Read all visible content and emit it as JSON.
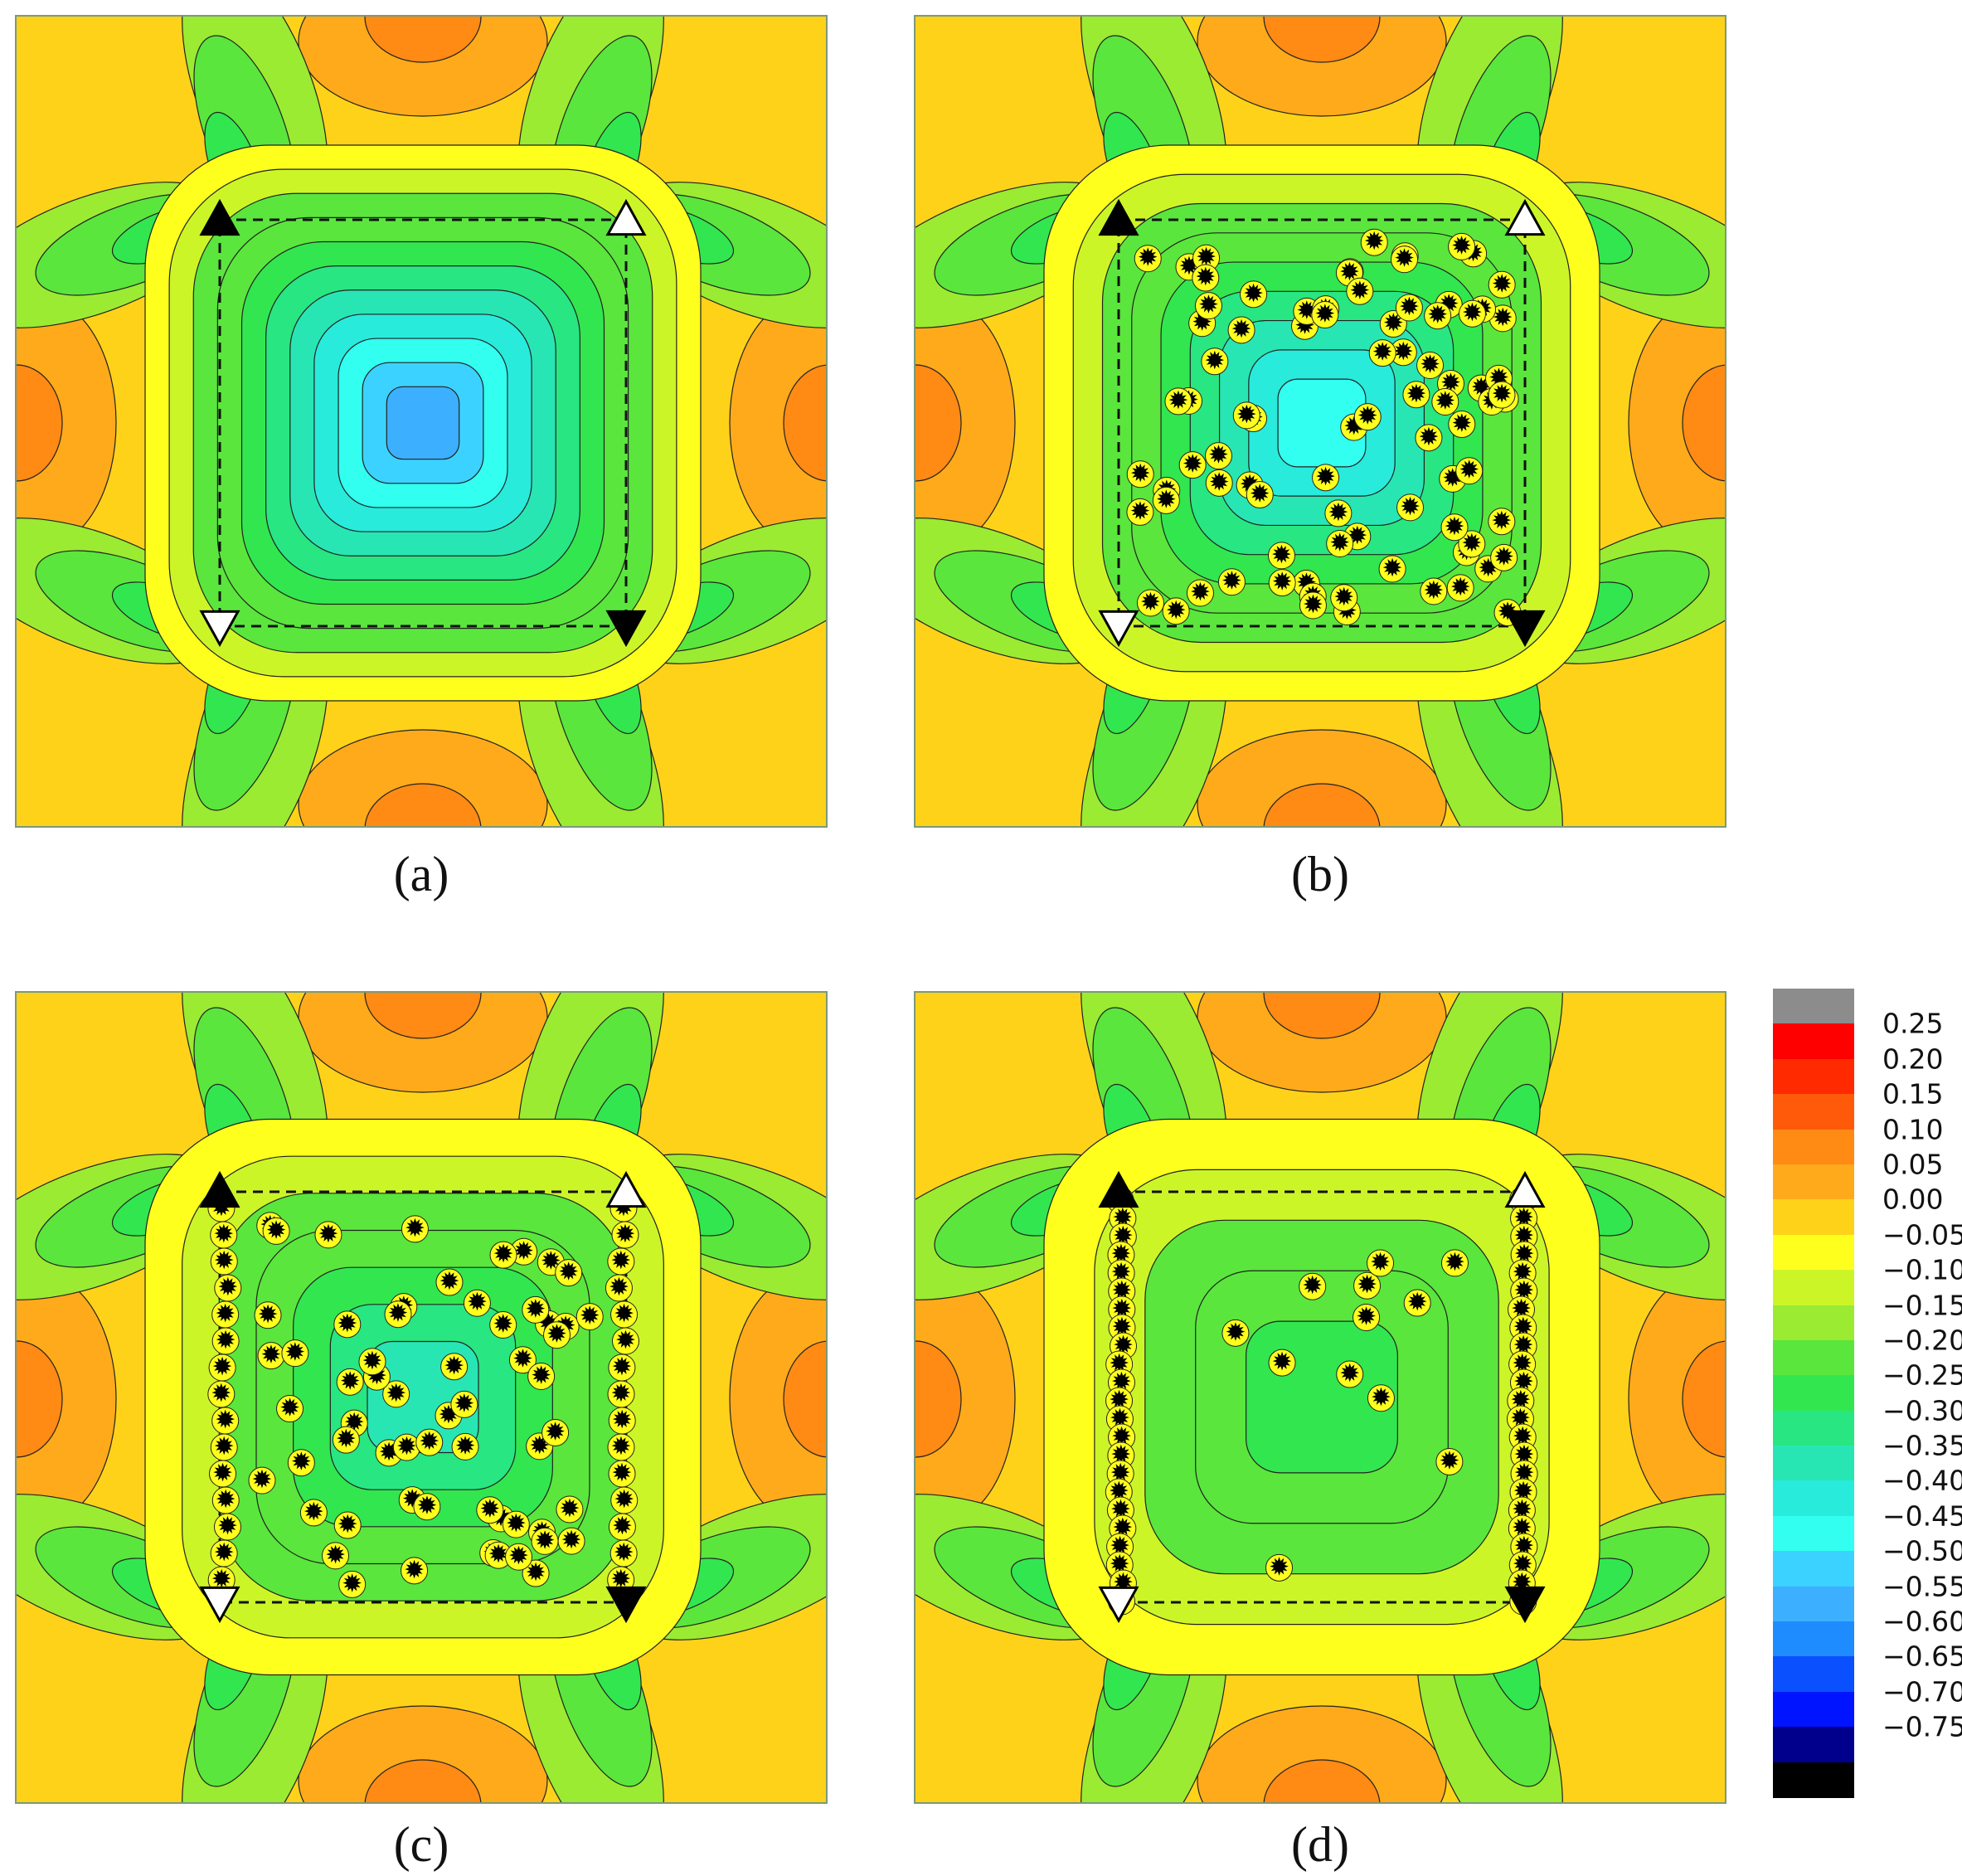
{
  "panels": [
    {
      "id": "a",
      "caption": "(a)",
      "pattern": "smooth",
      "defects": 0
    },
    {
      "id": "b",
      "caption": "(b)",
      "pattern": "scattered",
      "defects": 85
    },
    {
      "id": "c",
      "caption": "(c)",
      "pattern": "scattered-edges",
      "defects": 60
    },
    {
      "id": "d",
      "caption": "(d)",
      "pattern": "edges",
      "defects": 12
    }
  ],
  "markers": {
    "top_left": "filled-up-triangle",
    "top_right": "hollow-up-triangle",
    "bottom_left": "hollow-down-triangle",
    "bottom_right": "filled-down-triangle"
  },
  "colorbar": {
    "top_color": "#8c8c8c",
    "levels": [
      {
        "label": "0.25",
        "color": "#ff0000"
      },
      {
        "label": "0.20",
        "color": "#ff2a00"
      },
      {
        "label": "0.15",
        "color": "#ff5a0a"
      },
      {
        "label": "0.10",
        "color": "#ff8a14"
      },
      {
        "label": "0.05",
        "color": "#ffaa1a"
      },
      {
        "label": "0.00",
        "color": "#ffd21a"
      },
      {
        "label": "−0.05",
        "color": "#ffff1e"
      },
      {
        "label": "−0.10",
        "color": "#ccf528"
      },
      {
        "label": "−0.15",
        "color": "#9aeb32"
      },
      {
        "label": "−0.20",
        "color": "#5ae63c"
      },
      {
        "label": "−0.25",
        "color": "#32e650"
      },
      {
        "label": "−0.30",
        "color": "#28e682"
      },
      {
        "label": "−0.35",
        "color": "#28e6b4"
      },
      {
        "label": "−0.40",
        "color": "#28ebdc"
      },
      {
        "label": "−0.45",
        "color": "#32fff0"
      },
      {
        "label": "−0.50",
        "color": "#3cd2ff"
      },
      {
        "label": "−0.55",
        "color": "#3cafff"
      },
      {
        "label": "−0.60",
        "color": "#1e8cff"
      },
      {
        "label": "−0.65",
        "color": "#0a50ff"
      },
      {
        "label": "−0.70",
        "color": "#0014ff"
      },
      {
        "label": "−0.75",
        "color": "#00008c"
      }
    ],
    "bottom_color": "#000000"
  }
}
